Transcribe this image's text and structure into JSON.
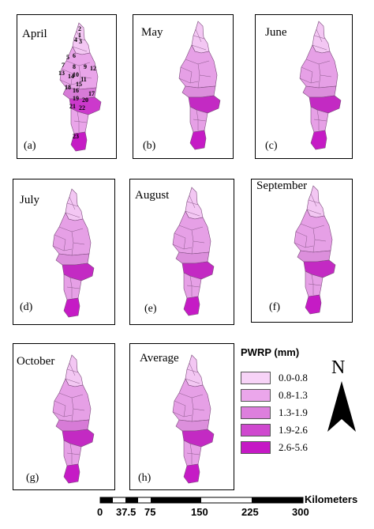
{
  "panels": [
    {
      "id": "april",
      "month": "April",
      "letter": "(a)",
      "fills": {
        "north": "#f3c7f3",
        "upper": "#e9a5e9",
        "middle": "#d77bd7",
        "lower": "#cc39cc",
        "south": "#c51bc5"
      }
    },
    {
      "id": "may",
      "month": "May",
      "letter": "(b)",
      "fills": {
        "north": "#f3c7f3",
        "upper": "#e6a0e6",
        "middle": "#dc8fdc",
        "lower": "#c32ac3",
        "south": "#c51bc5"
      }
    },
    {
      "id": "june",
      "month": "June",
      "letter": "(c)",
      "fills": {
        "north": "#f3c7f3",
        "upper": "#e6a0e6",
        "middle": "#dc8fdc",
        "lower": "#c32ac3",
        "south": "#c51bc5"
      }
    },
    {
      "id": "july",
      "month": "July",
      "letter": "(d)",
      "fills": {
        "north": "#f3c7f3",
        "upper": "#e6a0e6",
        "middle": "#dc8fdc",
        "lower": "#c32ac3",
        "south": "#c51bc5"
      }
    },
    {
      "id": "august",
      "month": "August",
      "letter": "(e)",
      "fills": {
        "north": "#f3c7f3",
        "upper": "#e6a0e6",
        "middle": "#dc8fdc",
        "lower": "#c32ac3",
        "south": "#c51bc5"
      }
    },
    {
      "id": "september",
      "month": "September",
      "letter": "(f)",
      "fills": {
        "north": "#f3c7f3",
        "upper": "#e6a0e6",
        "middle": "#dc8fdc",
        "lower": "#c32ac3",
        "south": "#c51bc5"
      }
    },
    {
      "id": "october",
      "month": "October",
      "letter": "(g)",
      "fills": {
        "north": "#f3c7f3",
        "upper": "#e6a0e6",
        "middle": "#d77bd7",
        "lower": "#c32ac3",
        "south": "#c51bc5"
      }
    },
    {
      "id": "average",
      "month": "Average",
      "letter": "(h)",
      "fills": {
        "north": "#f3c7f3",
        "upper": "#e6a0e6",
        "middle": "#dc8fdc",
        "lower": "#c32ac3",
        "south": "#c51bc5"
      }
    }
  ],
  "district_numbers": [
    "1",
    "2",
    "3",
    "4",
    "5",
    "6",
    "7",
    "8",
    "9",
    "10",
    "11",
    "12",
    "13",
    "14",
    "15",
    "16",
    "17",
    "18",
    "19",
    "20",
    "21",
    "22",
    "23"
  ],
  "legend": {
    "title": "PWRP (mm)",
    "classes": [
      {
        "label": "0.0-0.8",
        "color": "#f7d3f7"
      },
      {
        "label": "0.8-1.3",
        "color": "#eba6eb"
      },
      {
        "label": "1.3-1.9",
        "color": "#dd7fdd"
      },
      {
        "label": "1.9-2.6",
        "color": "#cf49cf"
      },
      {
        "label": "2.6-5.6",
        "color": "#c519c5"
      }
    ]
  },
  "north_arrow": {
    "label": "N"
  },
  "scale_bar": {
    "unit": "Kilometers",
    "ticks": [
      "0",
      "37.5",
      "75",
      "150",
      "225",
      "300"
    ]
  }
}
